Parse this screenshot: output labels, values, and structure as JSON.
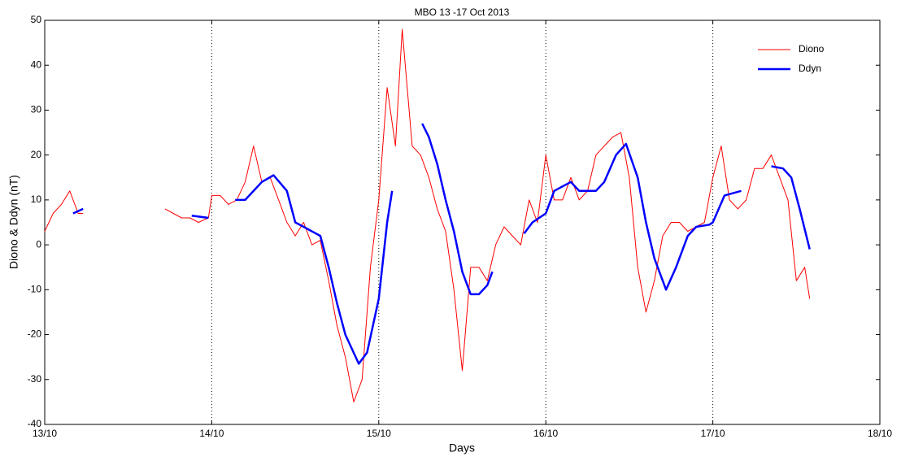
{
  "chart_data": {
    "type": "line",
    "title": "MBO 13 -17 Oct 2013",
    "xlabel": "Days",
    "ylabel": "Diono & Ddyn (nT)",
    "xlim": [
      13,
      18
    ],
    "xticks": [
      {
        "value": 13,
        "label": "13/10"
      },
      {
        "value": 14,
        "label": "14/10"
      },
      {
        "value": 15,
        "label": "15/10"
      },
      {
        "value": 16,
        "label": "16/10"
      },
      {
        "value": 17,
        "label": "17/10"
      },
      {
        "value": 18,
        "label": "18/10"
      }
    ],
    "ylim": [
      -40,
      50
    ],
    "yticks": [
      -40,
      -30,
      -20,
      -10,
      0,
      10,
      20,
      30,
      40,
      50
    ],
    "xgrid": [
      14,
      15,
      16,
      17
    ],
    "legend": "upper right",
    "series": [
      {
        "name": "Diono",
        "color": "#ff0000",
        "width": 1,
        "x": [
          13.0,
          13.05,
          13.1,
          13.15,
          13.2,
          13.23,
          null,
          13.72,
          13.77,
          13.82,
          13.87,
          13.92,
          13.98,
          14.0,
          14.05,
          14.1,
          14.15,
          14.2,
          14.25,
          14.3,
          14.35,
          14.4,
          14.45,
          14.5,
          14.55,
          14.6,
          14.65,
          14.7,
          14.75,
          14.8,
          14.85,
          14.9,
          14.95,
          15.0,
          15.05,
          15.1,
          15.14,
          15.2,
          15.25,
          15.3,
          15.35,
          15.4,
          15.45,
          15.5,
          15.55,
          15.6,
          15.65,
          15.7,
          15.75,
          15.8,
          15.85,
          15.9,
          15.95,
          16.0,
          16.05,
          16.1,
          16.15,
          16.2,
          16.25,
          16.3,
          16.35,
          16.4,
          16.45,
          16.5,
          16.55,
          16.6,
          16.65,
          16.7,
          16.75,
          16.8,
          16.85,
          16.9,
          16.95,
          17.0,
          17.05,
          17.1,
          17.15,
          17.2,
          17.25,
          17.3,
          17.35,
          17.4,
          17.45,
          17.5,
          17.55,
          17.58
        ],
        "values": [
          3,
          7,
          9,
          12,
          7,
          7,
          null,
          8,
          7,
          6,
          6,
          5,
          6,
          11,
          11,
          9,
          10,
          14,
          22,
          14,
          15,
          10,
          5,
          2,
          5,
          0,
          1,
          -8,
          -18,
          -25,
          -35,
          -30,
          -5,
          10,
          35,
          22,
          48,
          22,
          20,
          15,
          8,
          3,
          -10,
          -28,
          -5,
          -5,
          -8,
          0,
          4,
          2,
          0,
          10,
          5,
          20,
          10,
          10,
          15,
          10,
          12,
          20,
          22,
          24,
          25,
          15,
          -5,
          -15,
          -8,
          2,
          5,
          5,
          3,
          4,
          5,
          15,
          22,
          10,
          8,
          10,
          17,
          17,
          20,
          15,
          10,
          -8,
          -5,
          -12
        ]
      },
      {
        "name": "Ddyn",
        "color": "#0000ff",
        "width": 2.5,
        "x": [
          13.17,
          13.23,
          null,
          13.88,
          13.98,
          null,
          14.14,
          14.2,
          14.3,
          14.37,
          14.45,
          14.5,
          14.55,
          14.65,
          14.7,
          14.75,
          14.8,
          14.88,
          14.93,
          15.0,
          15.05,
          15.08,
          null,
          15.26,
          15.3,
          15.35,
          15.4,
          15.45,
          15.5,
          15.55,
          15.6,
          15.65,
          15.68,
          null,
          15.87,
          15.92,
          16.0,
          16.05,
          16.1,
          16.15,
          16.2,
          16.3,
          16.35,
          16.42,
          16.48,
          16.55,
          16.6,
          16.65,
          16.72,
          16.78,
          16.85,
          16.9,
          16.98,
          17.0,
          17.07,
          17.17,
          null,
          17.35,
          17.42,
          17.47,
          17.52,
          17.58
        ],
        "values": [
          7,
          8,
          null,
          6.5,
          6,
          null,
          10,
          10,
          14,
          15.5,
          12,
          5,
          4,
          2,
          -5,
          -13,
          -20,
          -26.5,
          -24,
          -12,
          5,
          12,
          null,
          27,
          24,
          18,
          10,
          3,
          -6,
          -11,
          -11,
          -9,
          -6,
          null,
          2.5,
          5,
          7,
          12,
          13,
          14,
          12,
          12,
          14,
          20,
          22.5,
          15,
          5,
          -3,
          -10,
          -5,
          2,
          4,
          4.5,
          5,
          11,
          12,
          null,
          17.5,
          17,
          15,
          8,
          -1
        ]
      }
    ]
  }
}
